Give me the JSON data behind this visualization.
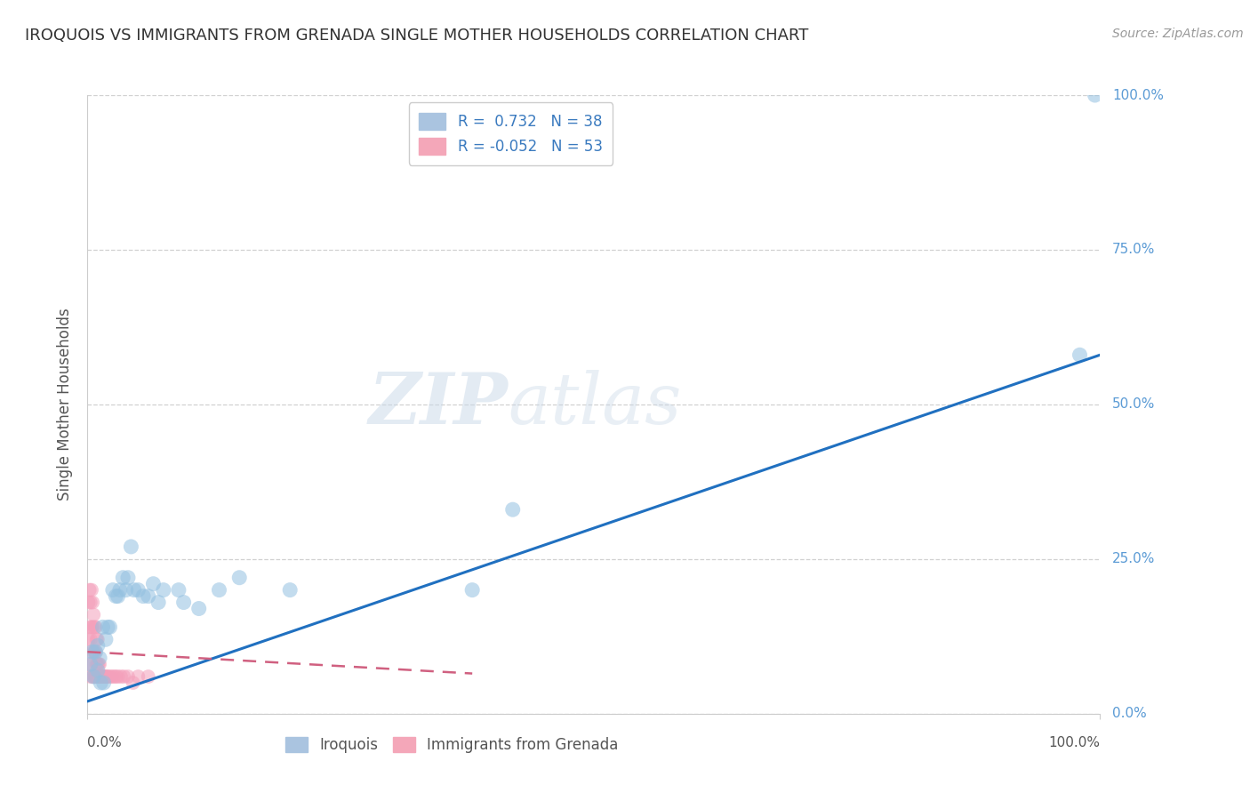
{
  "title": "IROQUOIS VS IMMIGRANTS FROM GRENADA SINGLE MOTHER HOUSEHOLDS CORRELATION CHART",
  "source": "Source: ZipAtlas.com",
  "ylabel": "Single Mother Households",
  "ytick_labels": [
    "0.0%",
    "25.0%",
    "50.0%",
    "75.0%",
    "100.0%"
  ],
  "ytick_values": [
    0.0,
    0.25,
    0.5,
    0.75,
    1.0
  ],
  "iroquois_color": "#93c0e0",
  "grenada_color": "#f4a0bb",
  "trendline_iroquois_color": "#2070c0",
  "trendline_grenada_color": "#d06080",
  "watermark_zip": "ZIP",
  "watermark_atlas": "atlas",
  "iroquois_x": [
    0.003,
    0.005,
    0.006,
    0.008,
    0.01,
    0.01,
    0.012,
    0.013,
    0.015,
    0.016,
    0.018,
    0.02,
    0.022,
    0.025,
    0.028,
    0.03,
    0.032,
    0.035,
    0.038,
    0.04,
    0.043,
    0.046,
    0.05,
    0.055,
    0.06,
    0.065,
    0.07,
    0.075,
    0.09,
    0.095,
    0.11,
    0.13,
    0.15,
    0.2,
    0.38,
    0.42,
    0.98,
    0.995
  ],
  "iroquois_y": [
    0.08,
    0.1,
    0.06,
    0.1,
    0.07,
    0.11,
    0.09,
    0.05,
    0.14,
    0.05,
    0.12,
    0.14,
    0.14,
    0.2,
    0.19,
    0.19,
    0.2,
    0.22,
    0.2,
    0.22,
    0.27,
    0.2,
    0.2,
    0.19,
    0.19,
    0.21,
    0.18,
    0.2,
    0.2,
    0.18,
    0.17,
    0.2,
    0.22,
    0.2,
    0.2,
    0.33,
    0.58,
    1.0
  ],
  "grenada_x": [
    0.001,
    0.001,
    0.002,
    0.002,
    0.002,
    0.003,
    0.003,
    0.003,
    0.004,
    0.004,
    0.004,
    0.005,
    0.005,
    0.005,
    0.005,
    0.006,
    0.006,
    0.006,
    0.007,
    0.007,
    0.007,
    0.008,
    0.008,
    0.008,
    0.009,
    0.009,
    0.009,
    0.01,
    0.01,
    0.01,
    0.011,
    0.011,
    0.012,
    0.012,
    0.013,
    0.014,
    0.015,
    0.016,
    0.017,
    0.018,
    0.019,
    0.02,
    0.022,
    0.024,
    0.026,
    0.028,
    0.03,
    0.033,
    0.036,
    0.04,
    0.045,
    0.05,
    0.06
  ],
  "grenada_y": [
    0.12,
    0.18,
    0.08,
    0.14,
    0.2,
    0.06,
    0.12,
    0.18,
    0.08,
    0.14,
    0.2,
    0.06,
    0.1,
    0.14,
    0.18,
    0.06,
    0.1,
    0.16,
    0.06,
    0.1,
    0.14,
    0.06,
    0.1,
    0.14,
    0.06,
    0.08,
    0.12,
    0.06,
    0.08,
    0.12,
    0.06,
    0.08,
    0.06,
    0.08,
    0.06,
    0.06,
    0.06,
    0.06,
    0.06,
    0.06,
    0.06,
    0.06,
    0.06,
    0.06,
    0.06,
    0.06,
    0.06,
    0.06,
    0.06,
    0.06,
    0.05,
    0.06,
    0.06
  ],
  "background_color": "#ffffff",
  "grid_color": "#cccccc",
  "title_color": "#333333",
  "legend_text_color": "#3a7abf",
  "ytick_color": "#5b9bd5",
  "xtick_color": "#555555",
  "axis_label_color": "#555555",
  "xlim": [
    0.0,
    1.0
  ],
  "ylim": [
    0.0,
    1.0
  ],
  "iroquois_trendline_x0": 0.0,
  "iroquois_trendline_y0": 0.02,
  "iroquois_trendline_x1": 1.0,
  "iroquois_trendline_y1": 0.58,
  "grenada_trendline_x0": 0.0,
  "grenada_trendline_y0": 0.1,
  "grenada_trendline_x1": 0.38,
  "grenada_trendline_y1": 0.065
}
